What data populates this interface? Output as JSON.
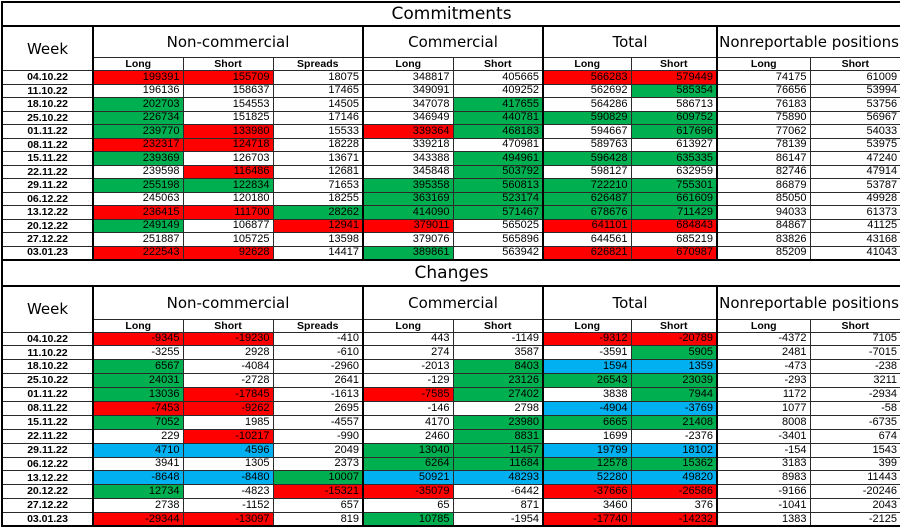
{
  "colors": {
    "red": "#ff0000",
    "green": "#00b050",
    "blue": "#00b0f0",
    "cell_default": "#ffffff",
    "border": "#000000"
  },
  "tables": [
    {
      "title": "Commitments",
      "week_header": "Week",
      "groups": [
        {
          "label": "Non-commercial",
          "span": 3
        },
        {
          "label": "Commercial",
          "span": 2
        },
        {
          "label": "Total",
          "span": 2
        },
        {
          "label": "Nonreportable positions",
          "span": 2
        }
      ],
      "subheaders": [
        "Long",
        "Short",
        "Spreads",
        "Long",
        "Short",
        "Long",
        "Short",
        "Long",
        "Short"
      ],
      "rows": [
        {
          "week": "04.10.22",
          "values": [
            "199391",
            "155709",
            "18075",
            "348817",
            "405665",
            "566283",
            "579449",
            "74175",
            "61009"
          ],
          "colors": [
            "red",
            "red",
            "",
            "",
            "",
            "red",
            "red",
            "",
            ""
          ]
        },
        {
          "week": "11.10.22",
          "values": [
            "196136",
            "158637",
            "17465",
            "349091",
            "409252",
            "562692",
            "585354",
            "76656",
            "53994"
          ],
          "colors": [
            "",
            "",
            "",
            "",
            "",
            "",
            "green",
            "",
            ""
          ]
        },
        {
          "week": "18.10.22",
          "values": [
            "202703",
            "154553",
            "14505",
            "347078",
            "417655",
            "564286",
            "586713",
            "76183",
            "53756"
          ],
          "colors": [
            "green",
            "",
            "",
            "",
            "green",
            "",
            "",
            "",
            ""
          ]
        },
        {
          "week": "25.10.22",
          "values": [
            "226734",
            "151825",
            "17146",
            "346949",
            "440781",
            "590829",
            "609752",
            "75890",
            "56967"
          ],
          "colors": [
            "green",
            "",
            "",
            "",
            "green",
            "green",
            "green",
            "",
            ""
          ]
        },
        {
          "week": "01.11.22",
          "values": [
            "239770",
            "133980",
            "15533",
            "339364",
            "468183",
            "594667",
            "617696",
            "77062",
            "54033"
          ],
          "colors": [
            "green",
            "red",
            "",
            "red",
            "green",
            "",
            "green",
            "",
            ""
          ]
        },
        {
          "week": "08.11.22",
          "values": [
            "232317",
            "124718",
            "18228",
            "339218",
            "470981",
            "589763",
            "613927",
            "78139",
            "53975"
          ],
          "colors": [
            "red",
            "red",
            "",
            "",
            "",
            "",
            "",
            "",
            ""
          ]
        },
        {
          "week": "15.11.22",
          "values": [
            "239369",
            "126703",
            "13671",
            "343388",
            "494961",
            "596428",
            "635335",
            "86147",
            "47240"
          ],
          "colors": [
            "green",
            "",
            "",
            "",
            "green",
            "green",
            "green",
            "",
            ""
          ]
        },
        {
          "week": "22.11.22",
          "values": [
            "239598",
            "116486",
            "12681",
            "345848",
            "503792",
            "598127",
            "632959",
            "82746",
            "47914"
          ],
          "colors": [
            "",
            "red",
            "",
            "",
            "green",
            "",
            "",
            "",
            ""
          ]
        },
        {
          "week": "29.11.22",
          "values": [
            "255198",
            "122834",
            "71653",
            "395358",
            "560813",
            "722210",
            "755301",
            "86879",
            "53787"
          ],
          "colors": [
            "green",
            "green",
            "",
            "green",
            "green",
            "green",
            "green",
            "",
            ""
          ]
        },
        {
          "week": "06.12.22",
          "values": [
            "245063",
            "120180",
            "18255",
            "363169",
            "523174",
            "626487",
            "661609",
            "85050",
            "49928"
          ],
          "colors": [
            "",
            "",
            "",
            "green",
            "green",
            "green",
            "green",
            "",
            ""
          ]
        },
        {
          "week": "13.12.22",
          "values": [
            "236415",
            "111700",
            "28262",
            "414090",
            "571467",
            "678676",
            "711429",
            "94033",
            "61373"
          ],
          "colors": [
            "red",
            "red",
            "green",
            "green",
            "green",
            "green",
            "green",
            "",
            ""
          ]
        },
        {
          "week": "20.12.22",
          "values": [
            "249149",
            "106877",
            "12941",
            "379011",
            "565025",
            "641101",
            "684843",
            "84867",
            "41125"
          ],
          "colors": [
            "green",
            "",
            "red",
            "red",
            "",
            "red",
            "red",
            "",
            ""
          ]
        },
        {
          "week": "27.12.22",
          "values": [
            "251887",
            "105725",
            "13598",
            "379076",
            "565896",
            "644561",
            "685219",
            "83826",
            "43168"
          ],
          "colors": [
            "",
            "",
            "",
            "",
            "",
            "",
            "",
            "",
            ""
          ]
        },
        {
          "week": "03.01.23",
          "values": [
            "222543",
            "92628",
            "14417",
            "389861",
            "563942",
            "626821",
            "670987",
            "85209",
            "41043"
          ],
          "colors": [
            "red",
            "red",
            "",
            "green",
            "",
            "red",
            "red",
            "",
            ""
          ]
        }
      ]
    },
    {
      "title": "Changes",
      "week_header": "Week",
      "groups": [
        {
          "label": "Non-commercial",
          "span": 3
        },
        {
          "label": "Commercial",
          "span": 2
        },
        {
          "label": "Total",
          "span": 2
        },
        {
          "label": "Nonreportable positions",
          "span": 2
        }
      ],
      "subheaders": [
        "Long",
        "Short",
        "Spreads",
        "Long",
        "Short",
        "Long",
        "Short",
        "Long",
        "Short"
      ],
      "rows": [
        {
          "week": "04.10.22",
          "values": [
            "-9345",
            "-19230",
            "-410",
            "443",
            "-1149",
            "-9312",
            "-20789",
            "-4372",
            "7105"
          ],
          "colors": [
            "red",
            "red",
            "",
            "",
            "",
            "red",
            "red",
            "",
            ""
          ]
        },
        {
          "week": "11.10.22",
          "values": [
            "-3255",
            "2928",
            "-610",
            "274",
            "3587",
            "-3591",
            "5905",
            "2481",
            "-7015"
          ],
          "colors": [
            "",
            "",
            "",
            "",
            "",
            "",
            "green",
            "",
            ""
          ]
        },
        {
          "week": "18.10.22",
          "values": [
            "6567",
            "-4084",
            "-2960",
            "-2013",
            "8403",
            "1594",
            "1359",
            "-473",
            "-238"
          ],
          "colors": [
            "green",
            "",
            "",
            "",
            "green",
            "blue",
            "blue",
            "",
            ""
          ]
        },
        {
          "week": "25.10.22",
          "values": [
            "24031",
            "-2728",
            "2641",
            "-129",
            "23126",
            "26543",
            "23039",
            "-293",
            "3211"
          ],
          "colors": [
            "green",
            "",
            "",
            "",
            "green",
            "green",
            "green",
            "",
            ""
          ]
        },
        {
          "week": "01.11.22",
          "values": [
            "13036",
            "-17845",
            "-1613",
            "-7585",
            "27402",
            "3838",
            "7944",
            "1172",
            "-2934"
          ],
          "colors": [
            "green",
            "red",
            "",
            "red",
            "green",
            "",
            "green",
            "",
            ""
          ]
        },
        {
          "week": "08.11.22",
          "values": [
            "-7453",
            "-9262",
            "2695",
            "-146",
            "2798",
            "-4904",
            "-3769",
            "1077",
            "-58"
          ],
          "colors": [
            "red",
            "red",
            "",
            "",
            "",
            "blue",
            "blue",
            "",
            ""
          ]
        },
        {
          "week": "15.11.22",
          "values": [
            "7052",
            "1985",
            "-4557",
            "4170",
            "23980",
            "6665",
            "21408",
            "8008",
            "-6735"
          ],
          "colors": [
            "green",
            "",
            "",
            "",
            "green",
            "green",
            "green",
            "",
            ""
          ]
        },
        {
          "week": "22.11.22",
          "values": [
            "229",
            "-10217",
            "-990",
            "2460",
            "8831",
            "1699",
            "-2376",
            "-3401",
            "674"
          ],
          "colors": [
            "",
            "red",
            "",
            "",
            "green",
            "",
            "",
            "",
            ""
          ]
        },
        {
          "week": "29.11.22",
          "values": [
            "4710",
            "4596",
            "2049",
            "13040",
            "11457",
            "19799",
            "18102",
            "-154",
            "1543"
          ],
          "colors": [
            "blue",
            "blue",
            "",
            "green",
            "green",
            "blue",
            "blue",
            "",
            ""
          ]
        },
        {
          "week": "06.12.22",
          "values": [
            "3941",
            "1305",
            "2373",
            "6264",
            "11684",
            "12578",
            "15362",
            "3183",
            "399"
          ],
          "colors": [
            "",
            "",
            "",
            "green",
            "green",
            "green",
            "green",
            "",
            ""
          ]
        },
        {
          "week": "13.12.22",
          "values": [
            "-8648",
            "-8480",
            "10007",
            "50921",
            "48293",
            "52280",
            "49820",
            "8983",
            "11443"
          ],
          "colors": [
            "blue",
            "blue",
            "green",
            "blue",
            "blue",
            "blue",
            "blue",
            "",
            ""
          ]
        },
        {
          "week": "20.12.22",
          "values": [
            "12734",
            "-4823",
            "-15321",
            "-35079",
            "-6442",
            "-37666",
            "-26586",
            "-9166",
            "-20246"
          ],
          "colors": [
            "green",
            "",
            "red",
            "red",
            "",
            "red",
            "red",
            "",
            ""
          ]
        },
        {
          "week": "27.12.22",
          "values": [
            "2738",
            "-1152",
            "657",
            "65",
            "871",
            "3460",
            "376",
            "-1041",
            "2043"
          ],
          "colors": [
            "",
            "",
            "",
            "",
            "",
            "",
            "",
            "",
            ""
          ]
        },
        {
          "week": "03.01.23",
          "values": [
            "-29344",
            "-13097",
            "819",
            "10785",
            "-1954",
            "-17740",
            "-14232",
            "1383",
            "-2125"
          ],
          "colors": [
            "red",
            "red",
            "",
            "green",
            "",
            "red",
            "red",
            "",
            ""
          ]
        }
      ]
    }
  ]
}
